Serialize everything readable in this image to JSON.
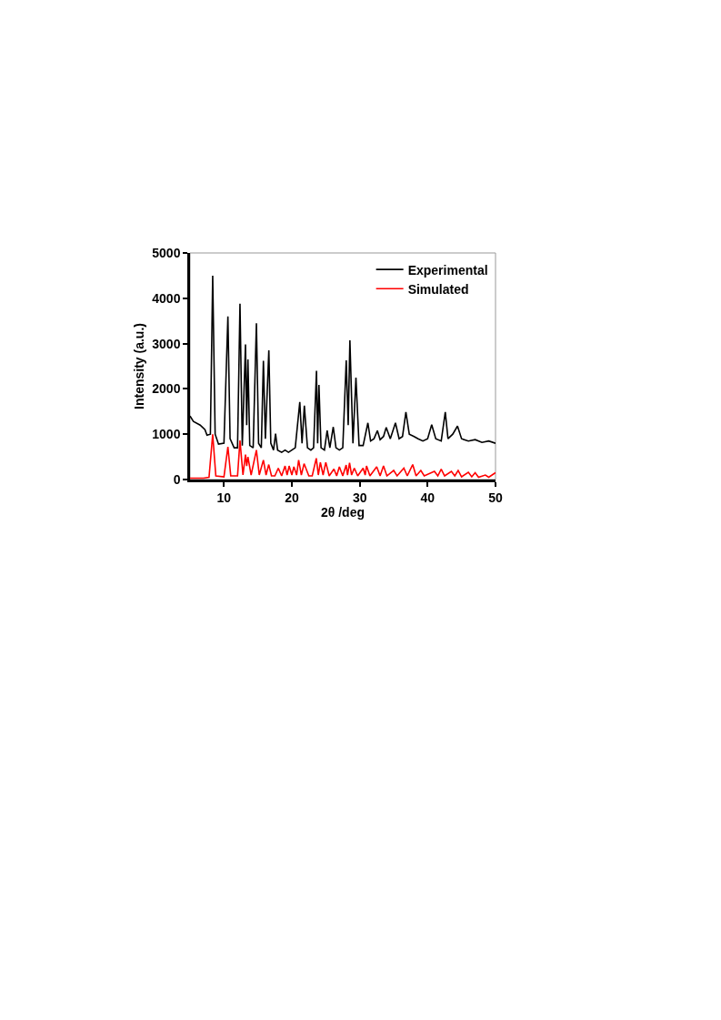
{
  "chart_data": {
    "type": "line",
    "xlabel": "2θ /deg",
    "ylabel": "Intensity (a.u.)",
    "xlim": [
      5,
      50
    ],
    "xticks": [
      10,
      20,
      30,
      40,
      50
    ],
    "ylim": [
      0,
      5000
    ],
    "yticks": [
      0,
      1000,
      2000,
      3000,
      4000,
      5000
    ],
    "grid": false,
    "legend": "top right",
    "marker": "none",
    "line_style": "solid",
    "series": [
      {
        "name": "Experimental",
        "color": "#000000",
        "x": [
          5,
          5.5,
          6.5,
          7.2,
          7.5,
          8,
          8.34,
          8.7,
          9.2,
          10,
          10.58,
          10.9,
          11.5,
          12,
          12.36,
          12.7,
          13.17,
          13.35,
          13.53,
          13.8,
          14.3,
          14.78,
          15.1,
          15.5,
          15.81,
          16.1,
          16.61,
          16.9,
          17.3,
          17.6,
          17.9,
          18.5,
          19,
          19.5,
          20,
          20.5,
          21.17,
          21.5,
          21.84,
          22.3,
          22.8,
          23.2,
          23.63,
          23.8,
          23.99,
          24.3,
          24.8,
          25.2,
          25.6,
          26.1,
          26.5,
          27,
          27.5,
          28.01,
          28.3,
          28.55,
          29,
          29.44,
          29.9,
          30.5,
          31.2,
          31.6,
          32.1,
          32.6,
          33,
          33.5,
          33.9,
          34.5,
          35.26,
          35.8,
          36.3,
          36.8,
          37.3,
          38,
          38.6,
          39.3,
          40,
          40.6,
          41.2,
          42,
          42.6,
          43,
          43.7,
          44.4,
          45,
          46,
          47,
          48,
          49,
          50
        ],
        "values": [
          1400,
          1280,
          1200,
          1100,
          980,
          1000,
          4500,
          1000,
          780,
          800,
          3600,
          900,
          700,
          700,
          3880,
          750,
          2980,
          1200,
          2650,
          750,
          700,
          3450,
          800,
          700,
          2620,
          900,
          2850,
          800,
          650,
          1010,
          650,
          600,
          650,
          600,
          650,
          700,
          1710,
          800,
          1630,
          700,
          650,
          700,
          2400,
          800,
          2090,
          700,
          650,
          1080,
          700,
          1160,
          700,
          650,
          700,
          2630,
          1200,
          3070,
          800,
          2250,
          750,
          750,
          1250,
          850,
          900,
          1080,
          880,
          950,
          1150,
          900,
          1250,
          900,
          950,
          1490,
          1000,
          950,
          900,
          850,
          900,
          1210,
          900,
          850,
          1490,
          900,
          1000,
          1180,
          900,
          850,
          880,
          820,
          850,
          800
        ]
      },
      {
        "name": "Simulated",
        "color": "#ff0000",
        "x": [
          5,
          7,
          7.8,
          8.34,
          8.8,
          10,
          10.58,
          11,
          12,
          12.36,
          12.8,
          13.17,
          13.35,
          13.53,
          14,
          14.78,
          15.2,
          15.81,
          16.2,
          16.6,
          17,
          17.5,
          18,
          18.5,
          19,
          19.3,
          19.6,
          20,
          20.3,
          20.7,
          21,
          21.4,
          21.8,
          22.5,
          23,
          23.6,
          23.9,
          24.2,
          24.6,
          25,
          25.5,
          26.2,
          26.6,
          27,
          27.5,
          28,
          28.2,
          28.5,
          28.8,
          29.2,
          29.7,
          30.5,
          30.8,
          31,
          31.5,
          32.5,
          33,
          33.5,
          34,
          35,
          35.5,
          36.5,
          37,
          37.8,
          38.3,
          39,
          39.5,
          41,
          41.5,
          42,
          42.5,
          43.5,
          44,
          44.5,
          45,
          46,
          46.5,
          47,
          47.5,
          48.5,
          49,
          50
        ],
        "values": [
          30,
          30,
          50,
          1000,
          80,
          60,
          720,
          80,
          80,
          860,
          100,
          550,
          300,
          500,
          100,
          650,
          100,
          430,
          100,
          330,
          80,
          80,
          250,
          80,
          300,
          100,
          300,
          100,
          280,
          100,
          430,
          100,
          350,
          80,
          80,
          470,
          100,
          380,
          100,
          380,
          80,
          230,
          80,
          280,
          80,
          320,
          100,
          370,
          100,
          250,
          80,
          250,
          100,
          300,
          80,
          280,
          80,
          300,
          80,
          200,
          80,
          250,
          80,
          330,
          80,
          200,
          80,
          180,
          80,
          230,
          80,
          180,
          80,
          200,
          60,
          160,
          60,
          150,
          50,
          100,
          50,
          150
        ]
      }
    ]
  }
}
